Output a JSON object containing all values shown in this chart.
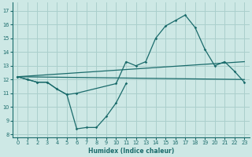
{
  "xlabel": "Humidex (Indice chaleur)",
  "bg_color": "#cde8e5",
  "grid_color": "#aacfcc",
  "line_color": "#1a6b6b",
  "xlim": [
    -0.5,
    23.5
  ],
  "ylim": [
    7.8,
    17.6
  ],
  "yticks": [
    8,
    9,
    10,
    11,
    12,
    13,
    14,
    15,
    16,
    17
  ],
  "xticks": [
    0,
    1,
    2,
    3,
    4,
    5,
    6,
    7,
    8,
    9,
    10,
    11,
    12,
    13,
    14,
    15,
    16,
    17,
    18,
    19,
    20,
    21,
    22,
    23
  ],
  "line1_x": [
    0,
    1,
    2,
    3,
    4,
    5,
    6,
    7,
    8,
    9,
    10,
    11
  ],
  "line1_y": [
    12.2,
    12.0,
    11.8,
    11.8,
    11.3,
    10.9,
    8.4,
    8.5,
    8.5,
    9.3,
    10.3,
    11.7
  ],
  "line2_x": [
    0,
    1,
    2,
    3,
    4,
    5,
    6,
    10,
    11,
    12,
    13,
    14,
    15,
    16,
    17,
    18,
    19,
    20,
    21,
    22,
    23
  ],
  "line2_y": [
    12.2,
    12.0,
    11.8,
    11.8,
    11.3,
    10.9,
    11.0,
    11.7,
    13.3,
    13.0,
    13.3,
    15.0,
    15.9,
    16.3,
    16.7,
    15.8,
    14.2,
    13.0,
    13.3,
    12.6,
    11.8
  ],
  "line3_x": [
    0,
    23
  ],
  "line3_y": [
    12.2,
    12.0
  ],
  "line4_x": [
    0,
    23
  ],
  "line4_y": [
    12.2,
    13.3
  ],
  "xlabel_fontsize": 5.5,
  "tick_fontsize": 4.8
}
